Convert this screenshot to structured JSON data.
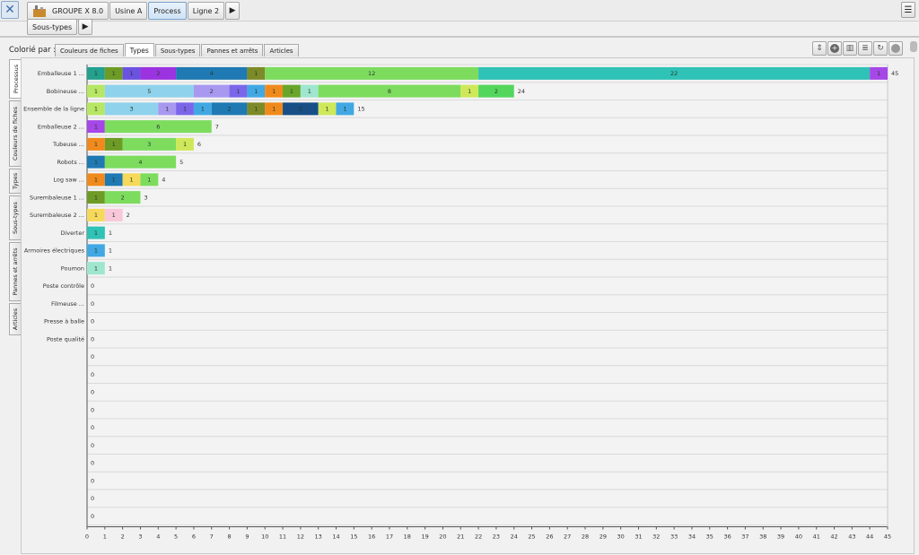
{
  "topbar": {
    "close_icon": "close-icon",
    "breadcrumbs": [
      "GROUPE X 8.0",
      "Usine A",
      "Process",
      "Ligne 2"
    ],
    "active_crumb": "Process",
    "sub_crumb": "Sous-types"
  },
  "toolbar": {
    "colorby_label": "Colorié par :",
    "tabs": [
      "Couleurs de fiches",
      "Types",
      "Sous-types",
      "Pannes et arrêts",
      "Articles"
    ],
    "active_tab": "Types",
    "buttons": [
      "sort-icon",
      "add-icon",
      "bar-chart-icon",
      "list-icon",
      "refresh-icon",
      "settings-icon"
    ]
  },
  "side_tabs": [
    "Processus",
    "Couleurs de fiches",
    "Types",
    "Sous-types",
    "Pannes et arrêts",
    "Articles"
  ],
  "chart_data": {
    "type": "bar",
    "orientation": "horizontal",
    "stacked": true,
    "xlim": [
      0,
      45
    ],
    "xticks": [
      0,
      1,
      2,
      3,
      4,
      5,
      6,
      7,
      8,
      9,
      10,
      11,
      12,
      13,
      14,
      15,
      16,
      17,
      18,
      19,
      20,
      21,
      22,
      23,
      24,
      25,
      26,
      27,
      28,
      29,
      30,
      31,
      32,
      33,
      34,
      35,
      36,
      37,
      38,
      39,
      40,
      41,
      42,
      43,
      44,
      45
    ],
    "rows": [
      {
        "label": "Emballeuse 1 ...",
        "total": 45,
        "segments": [
          {
            "value": 1,
            "color": "#23a08e"
          },
          {
            "value": 1,
            "color": "#6e9b25"
          },
          {
            "value": 1,
            "color": "#6b52e0"
          },
          {
            "value": 2,
            "color": "#9b33e0"
          },
          {
            "value": 4,
            "color": "#1f79b3"
          },
          {
            "value": 1,
            "color": "#7d8a28"
          },
          {
            "value": 12,
            "color": "#7ddc5e"
          },
          {
            "value": 22,
            "color": "#2fc2b6"
          },
          {
            "value": 1,
            "color": "#a647e8"
          }
        ]
      },
      {
        "label": "Bobineuse ...",
        "total": 24,
        "segments": [
          {
            "value": 1,
            "color": "#b7e664"
          },
          {
            "value": 5,
            "color": "#8fd2ec"
          },
          {
            "value": 2,
            "color": "#a898f0"
          },
          {
            "value": 1,
            "color": "#7b66ea"
          },
          {
            "value": 1,
            "color": "#41a8e3"
          },
          {
            "value": 1,
            "color": "#f08a1c"
          },
          {
            "value": 1,
            "color": "#69a62a"
          },
          {
            "value": 1,
            "color": "#9fe6cf"
          },
          {
            "value": 8,
            "color": "#7ddc5e"
          },
          {
            "value": 1,
            "color": "#cfe85a"
          },
          {
            "value": 2,
            "color": "#52d65c"
          }
        ]
      },
      {
        "label": "Ensemble de la ligne",
        "total": 15,
        "segments": [
          {
            "value": 1,
            "color": "#b7e664"
          },
          {
            "value": 3,
            "color": "#8fd2ec"
          },
          {
            "value": 1,
            "color": "#a898f0"
          },
          {
            "value": 1,
            "color": "#7b66ea"
          },
          {
            "value": 1,
            "color": "#41a8e3"
          },
          {
            "value": 2,
            "color": "#1f79b3"
          },
          {
            "value": 1,
            "color": "#7d8a28"
          },
          {
            "value": 1,
            "color": "#f08a1c"
          },
          {
            "value": 2,
            "color": "#174f86"
          },
          {
            "value": 1,
            "color": "#cfe85a"
          },
          {
            "value": 1,
            "color": "#41a8e3"
          }
        ]
      },
      {
        "label": "Emballeuse 2 ...",
        "total": 7,
        "segments": [
          {
            "value": 1,
            "color": "#a647e8"
          },
          {
            "value": 6,
            "color": "#7ddc5e"
          }
        ]
      },
      {
        "label": "Tubeuse ...",
        "total": 6,
        "segments": [
          {
            "value": 1,
            "color": "#f08a1c"
          },
          {
            "value": 1,
            "color": "#6e9b25"
          },
          {
            "value": 3,
            "color": "#7ddc5e"
          },
          {
            "value": 1,
            "color": "#cfe85a"
          }
        ]
      },
      {
        "label": "Robots ...",
        "total": 5,
        "segments": [
          {
            "value": 1,
            "color": "#1f79b3"
          },
          {
            "value": 4,
            "color": "#7ddc5e"
          }
        ]
      },
      {
        "label": "Log saw ...",
        "total": 4,
        "segments": [
          {
            "value": 1,
            "color": "#f08a1c"
          },
          {
            "value": 1,
            "color": "#1f79b3"
          },
          {
            "value": 1,
            "color": "#f6d95a"
          },
          {
            "value": 1,
            "color": "#7ddc5e"
          }
        ]
      },
      {
        "label": "Surembaleuse 1 ...",
        "total": 3,
        "segments": [
          {
            "value": 1,
            "color": "#6e9b25"
          },
          {
            "value": 2,
            "color": "#7ddc5e"
          }
        ]
      },
      {
        "label": "Surembaleuse 2 ...",
        "total": 2,
        "segments": [
          {
            "value": 1,
            "color": "#f6d95a"
          },
          {
            "value": 1,
            "color": "#f9c7da"
          }
        ]
      },
      {
        "label": "Diverter",
        "total": 1,
        "segments": [
          {
            "value": 1,
            "color": "#2fc2b6"
          }
        ]
      },
      {
        "label": "Armoires électriques",
        "total": 1,
        "segments": [
          {
            "value": 1,
            "color": "#41a8e3"
          }
        ]
      },
      {
        "label": "Poumon",
        "total": 1,
        "segments": [
          {
            "value": 1,
            "color": "#9fe6cf"
          }
        ]
      },
      {
        "label": "Poste contrôle",
        "total": 0,
        "segments": []
      },
      {
        "label": "Filmeuse ...",
        "total": 0,
        "segments": []
      },
      {
        "label": "Presse à balle",
        "total": 0,
        "segments": []
      },
      {
        "label": "Poste qualité",
        "total": 0,
        "segments": []
      },
      {
        "label": "",
        "total": 0,
        "segments": []
      },
      {
        "label": "",
        "total": 0,
        "segments": []
      },
      {
        "label": "",
        "total": 0,
        "segments": []
      },
      {
        "label": "",
        "total": 0,
        "segments": []
      },
      {
        "label": "",
        "total": 0,
        "segments": []
      },
      {
        "label": "",
        "total": 0,
        "segments": []
      },
      {
        "label": "",
        "total": 0,
        "segments": []
      },
      {
        "label": "",
        "total": 0,
        "segments": []
      },
      {
        "label": "",
        "total": 0,
        "segments": []
      },
      {
        "label": "",
        "total": 0,
        "segments": []
      }
    ]
  }
}
